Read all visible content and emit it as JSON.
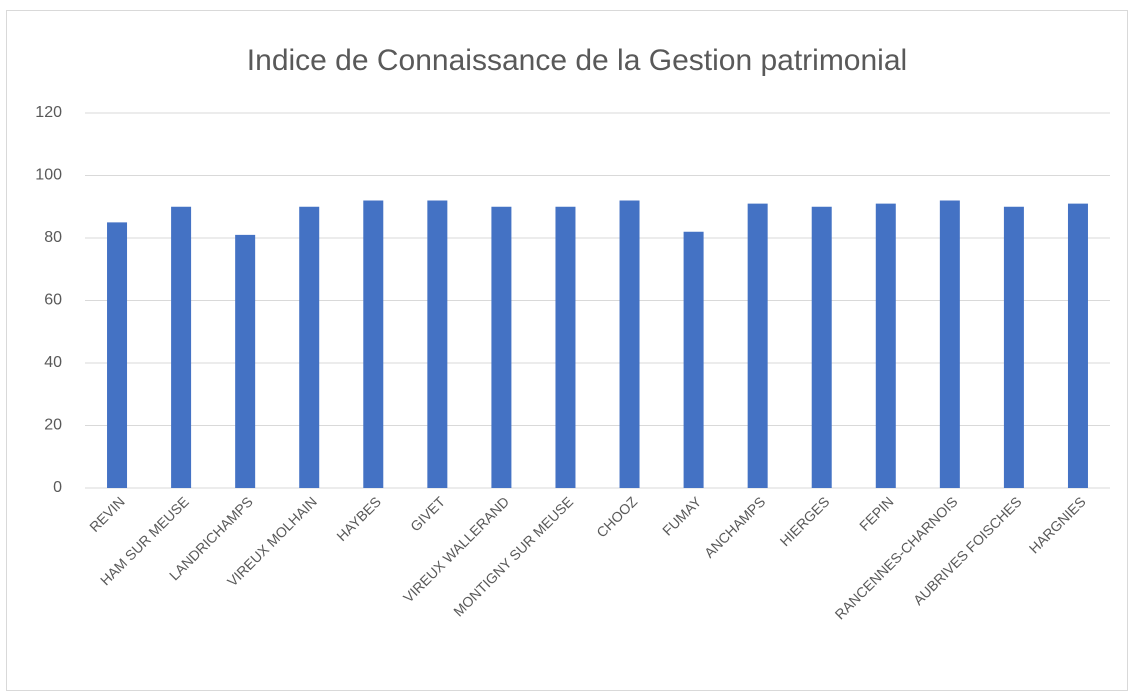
{
  "chart_data": {
    "type": "bar",
    "title": "Indice de Connaissance de la Gestion patrimonial",
    "categories": [
      "REVIN",
      "HAM SUR MEUSE",
      "LANDRICHAMPS",
      "VIREUX MOLHAIN",
      "HAYBES",
      "GIVET",
      "VIREUX WALLERAND",
      "MONTIGNY SUR MEUSE",
      "CHOOZ",
      "FUMAY",
      "ANCHAMPS",
      "HIERGES",
      "FEPIN",
      "RANCENNES-CHARNOIS",
      "AUBRIVES FOISCHES",
      "HARGNIES"
    ],
    "values": [
      85,
      90,
      81,
      90,
      92,
      92,
      90,
      90,
      92,
      82,
      91,
      90,
      91,
      92,
      90,
      91
    ],
    "color": "#4472c4",
    "ylim": [
      0,
      120
    ],
    "yticks": [
      0,
      20,
      40,
      60,
      80,
      100,
      120
    ],
    "grid": true
  }
}
